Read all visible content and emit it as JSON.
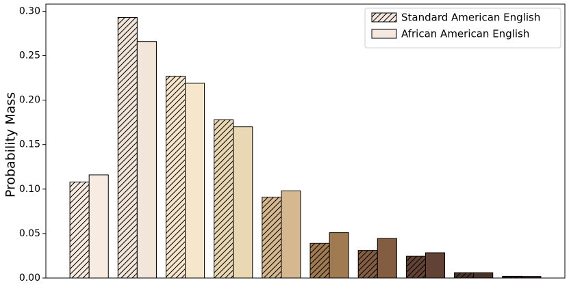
{
  "chart_data": {
    "type": "bar",
    "y_label": "Probability Mass",
    "categories": [
      null,
      null,
      null,
      null,
      null,
      null,
      null,
      null,
      null,
      null
    ],
    "colors": [
      "#f7ebe2",
      "#f2e5d9",
      "#f6e6cb",
      "#ead8b5",
      "#d5b88f",
      "#a07a50",
      "#835d41",
      "#624234",
      "#4a3427",
      "#392a22"
    ],
    "series": [
      {
        "name": "Standard American English",
        "color": "#f5e9df",
        "hatch": true,
        "values": [
          0.108,
          0.293,
          0.227,
          0.178,
          0.091,
          0.039,
          0.031,
          0.0245,
          0.006,
          0.002
        ]
      },
      {
        "name": "African American English",
        "color": "#f5e9df",
        "hatch": false,
        "values": [
          0.116,
          0.266,
          0.219,
          0.17,
          0.098,
          0.051,
          0.0445,
          0.0284,
          0.006,
          0.0018
        ]
      }
    ],
    "ylim": [
      0,
      0.308
    ],
    "yticks": [
      {
        "value": 0,
        "label": "0.00"
      },
      {
        "value": 0.05,
        "label": "0.05"
      },
      {
        "value": 0.1,
        "label": "0.10"
      },
      {
        "value": 0.15,
        "label": "0.15"
      },
      {
        "value": 0.2,
        "label": "0.20"
      },
      {
        "value": 0.25,
        "label": "0.25"
      },
      {
        "value": 0.3,
        "label": "0.30"
      }
    ],
    "legend": "upper right"
  }
}
